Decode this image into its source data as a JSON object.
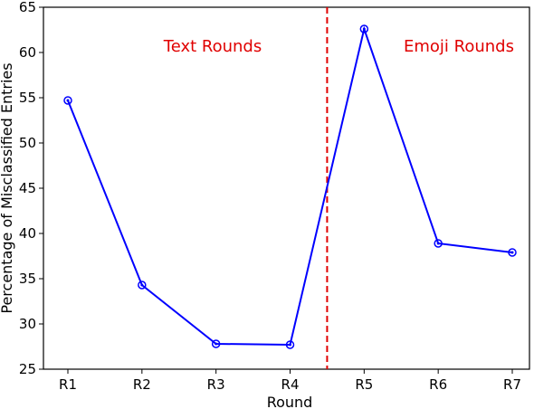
{
  "chart_data": {
    "type": "line",
    "categories": [
      "R1",
      "R2",
      "R3",
      "R4",
      "R5",
      "R6",
      "R7"
    ],
    "series": [
      {
        "values": [
          54.7,
          34.3,
          27.8,
          27.7,
          62.6,
          38.9,
          37.9
        ],
        "color": "#0000ff"
      }
    ],
    "xlabel": "Round",
    "ylabel": "Percentage of Misclassified Entries",
    "ylim": [
      25,
      65
    ],
    "yticks": [
      25,
      30,
      35,
      40,
      45,
      50,
      55,
      60,
      65
    ],
    "grid": false,
    "divider": {
      "between": [
        "R4",
        "R5"
      ],
      "style": "dashed",
      "color": "#e00000"
    },
    "annotations": [
      {
        "text": "Text Rounds",
        "color": "#e00000"
      },
      {
        "text": "Emoji Rounds",
        "color": "#e00000"
      }
    ]
  }
}
